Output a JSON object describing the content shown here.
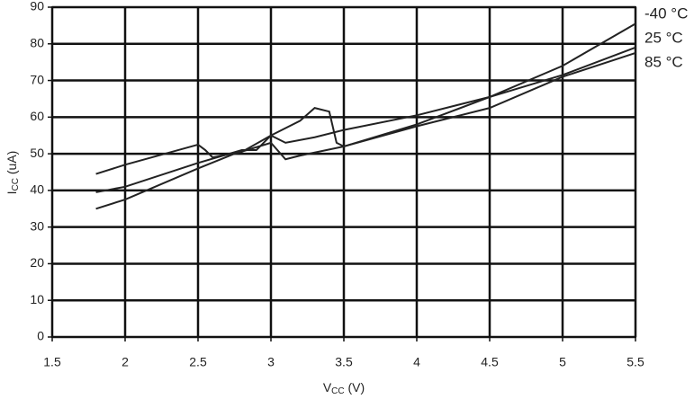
{
  "chart_data": {
    "type": "line",
    "ylabel_parts": [
      "I",
      "CC",
      " (uA)"
    ],
    "xlabel_parts": [
      "V",
      "CC",
      " (V)"
    ],
    "xlim": [
      1.5,
      5.5
    ],
    "xticks": [
      1.5,
      2,
      2.5,
      3,
      3.5,
      4,
      4.5,
      5,
      5.5
    ],
    "ylim": [
      0,
      90
    ],
    "yticks": [
      0,
      10,
      20,
      30,
      40,
      50,
      60,
      70,
      80,
      90
    ],
    "grid": true,
    "series": [
      {
        "name": "-40 °C",
        "color": "#222222",
        "x": [
          1.8,
          2,
          2.5,
          2.75,
          3,
          3.1,
          3.2,
          3.5,
          4,
          4.5,
          5,
          5.5
        ],
        "values": [
          35,
          37.5,
          46,
          50,
          53,
          48.5,
          49.5,
          52,
          58,
          65.5,
          74,
          85.5
        ]
      },
      {
        "name": "25 °C",
        "color": "#222222",
        "x": [
          1.8,
          2,
          2.5,
          2.8,
          2.9,
          3,
          3.1,
          3.3,
          3.5,
          4,
          4.5,
          5,
          5.5
        ],
        "values": [
          39.5,
          41,
          47.5,
          51,
          51,
          55,
          53,
          54.5,
          56.5,
          60.5,
          65.5,
          71.5,
          79
        ]
      },
      {
        "name": "85 °C",
        "color": "#222222",
        "x": [
          1.8,
          2,
          2.5,
          2.55,
          2.6,
          2.8,
          3,
          3.2,
          3.3,
          3.4,
          3.45,
          3.5,
          4,
          4.5,
          5,
          5.5
        ],
        "values": [
          44.5,
          47,
          52.5,
          51,
          49,
          50.5,
          55,
          59,
          62.5,
          61.5,
          53,
          52,
          57.5,
          62.5,
          71,
          77.5
        ]
      }
    ]
  }
}
